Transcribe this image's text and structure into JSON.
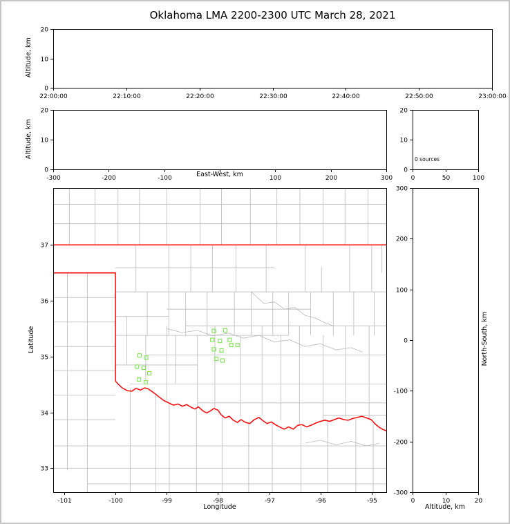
{
  "title": "Oklahoma LMA 2200-2300 UTC March 28, 2021",
  "labels": {
    "altitude": "Altitude, km",
    "east_west": "East-West, km",
    "latitude": "Latitude",
    "longitude": "Longitude",
    "north_south": "North-South, km"
  },
  "colors": {
    "background": "#ffffff",
    "figure_border": "#c4c4c4",
    "frame": "#000000",
    "text": "#000000",
    "county": "#b8b8b8",
    "state_border": "#ff0000",
    "station": "#78e64c"
  },
  "chart_data": [
    {
      "id": "time_height_panel",
      "type": "line",
      "ylabel": "Altitude, km",
      "xlim": [
        0,
        6
      ],
      "x_ticks": [
        0,
        1,
        2,
        3,
        4,
        5,
        6
      ],
      "x_tick_labels": [
        "22:00:00",
        "22:10:00",
        "22:20:00",
        "22:30:00",
        "22:40:00",
        "22:50:00",
        "23:00:00"
      ],
      "ylim": [
        0,
        20
      ],
      "y_ticks": [
        0,
        10,
        20
      ],
      "series": []
    },
    {
      "id": "ew_height_panel",
      "type": "line",
      "xlabel": "East-West, km",
      "ylabel": "Altitude, km",
      "xlim": [
        -300,
        300
      ],
      "x_ticks": [
        -300,
        -200,
        -100,
        0,
        100,
        200,
        300
      ],
      "x_tick_labels": [
        "-300",
        "-200",
        "-100",
        "",
        "100",
        "200",
        "300"
      ],
      "ylim": [
        0,
        20
      ],
      "y_ticks": [
        0,
        10,
        20
      ],
      "series": []
    },
    {
      "id": "altitude_histogram_panel",
      "type": "bar",
      "annotation": "0 sources",
      "xlim": [
        0,
        100
      ],
      "x_ticks": [
        0,
        50,
        100
      ],
      "x_tick_labels": [
        "0",
        "50",
        "100"
      ],
      "ylim": [
        0,
        20
      ],
      "y_ticks": [
        0,
        10,
        20
      ],
      "values": []
    },
    {
      "id": "map_panel",
      "type": "scatter",
      "xlabel": "Longitude",
      "ylabel": "Latitude",
      "xlim": [
        -101.215,
        -94.715
      ],
      "ylim": [
        32.57,
        38.02
      ],
      "x_ticks": [
        -101,
        -100,
        -99,
        -98,
        -97,
        -96,
        -95
      ],
      "y_ticks": [
        33,
        34,
        35,
        36,
        37
      ],
      "stations": [
        [
          -98.08,
          35.46
        ],
        [
          -97.86,
          35.47
        ],
        [
          -98.11,
          35.3
        ],
        [
          -97.96,
          35.28
        ],
        [
          -97.77,
          35.3
        ],
        [
          -97.62,
          35.21
        ],
        [
          -98.08,
          35.13
        ],
        [
          -97.93,
          35.11
        ],
        [
          -97.74,
          35.21
        ],
        [
          -98.03,
          34.96
        ],
        [
          -97.91,
          34.93
        ],
        [
          -99.53,
          35.02
        ],
        [
          -99.4,
          34.98
        ],
        [
          -99.58,
          34.82
        ],
        [
          -99.45,
          34.8
        ],
        [
          -99.34,
          34.7
        ],
        [
          -99.54,
          34.59
        ],
        [
          -99.41,
          34.54
        ]
      ],
      "state_boundary": [
        [
          [
            -101.215,
            37.0
          ],
          [
            -94.715,
            37.0
          ]
        ],
        [
          [
            -94.715,
            36.69
          ],
          [
            -94.63,
            36.69
          ],
          [
            -94.63,
            37.0
          ]
        ],
        [
          [
            -101.215,
            36.5
          ],
          [
            -100.0,
            36.5
          ],
          [
            -100.0,
            34.56
          ],
          [
            -99.95,
            34.51
          ],
          [
            -99.87,
            34.44
          ],
          [
            -99.77,
            34.39
          ],
          [
            -99.68,
            34.38
          ],
          [
            -99.6,
            34.43
          ],
          [
            -99.51,
            34.4
          ],
          [
            -99.43,
            34.44
          ],
          [
            -99.36,
            34.42
          ],
          [
            -99.28,
            34.37
          ],
          [
            -99.22,
            34.33
          ],
          [
            -99.14,
            34.27
          ],
          [
            -99.05,
            34.21
          ],
          [
            -98.96,
            34.17
          ],
          [
            -98.87,
            34.13
          ],
          [
            -98.78,
            34.15
          ],
          [
            -98.69,
            34.11
          ],
          [
            -98.61,
            34.14
          ],
          [
            -98.52,
            34.09
          ],
          [
            -98.45,
            34.06
          ],
          [
            -98.38,
            34.1
          ],
          [
            -98.3,
            34.03
          ],
          [
            -98.22,
            33.99
          ],
          [
            -98.14,
            34.03
          ],
          [
            -98.08,
            34.07
          ],
          [
            -98.0,
            34.04
          ],
          [
            -97.94,
            33.96
          ],
          [
            -97.86,
            33.9
          ],
          [
            -97.78,
            33.93
          ],
          [
            -97.7,
            33.86
          ],
          [
            -97.62,
            33.82
          ],
          [
            -97.55,
            33.87
          ],
          [
            -97.46,
            33.82
          ],
          [
            -97.38,
            33.8
          ],
          [
            -97.29,
            33.87
          ],
          [
            -97.2,
            33.91
          ],
          [
            -97.12,
            33.85
          ],
          [
            -97.04,
            33.8
          ],
          [
            -96.96,
            33.83
          ],
          [
            -96.88,
            33.78
          ],
          [
            -96.8,
            33.74
          ],
          [
            -96.71,
            33.7
          ],
          [
            -96.62,
            33.74
          ],
          [
            -96.53,
            33.7
          ],
          [
            -96.44,
            33.77
          ],
          [
            -96.36,
            33.78
          ],
          [
            -96.27,
            33.74
          ],
          [
            -96.18,
            33.77
          ],
          [
            -96.09,
            33.81
          ],
          [
            -96.0,
            33.84
          ],
          [
            -95.91,
            33.86
          ],
          [
            -95.82,
            33.84
          ],
          [
            -95.73,
            33.87
          ],
          [
            -95.64,
            33.9
          ],
          [
            -95.55,
            33.87
          ],
          [
            -95.46,
            33.86
          ],
          [
            -95.37,
            33.89
          ],
          [
            -95.28,
            33.91
          ],
          [
            -95.19,
            33.93
          ],
          [
            -95.1,
            33.9
          ],
          [
            -95.01,
            33.87
          ],
          [
            -94.93,
            33.79
          ],
          [
            -94.85,
            33.73
          ],
          [
            -94.77,
            33.69
          ],
          [
            -94.715,
            33.67
          ]
        ]
      ],
      "county_vlines": [
        [
          -100.9,
          37.0,
          38.02
        ],
        [
          -100.4,
          37.0,
          38.02
        ],
        [
          -99.95,
          37.0,
          38.02
        ],
        [
          -99.53,
          37.0,
          38.02
        ],
        [
          -99.0,
          37.0,
          38.02
        ],
        [
          -98.35,
          37.0,
          38.02
        ],
        [
          -97.93,
          37.0,
          38.02
        ],
        [
          -97.37,
          37.0,
          38.02
        ],
        [
          -96.85,
          37.0,
          38.02
        ],
        [
          -96.4,
          37.0,
          38.02
        ],
        [
          -95.95,
          37.0,
          38.02
        ],
        [
          -95.52,
          37.0,
          38.02
        ],
        [
          -95.07,
          37.0,
          38.02
        ],
        [
          -100.94,
          32.96,
          36.5
        ],
        [
          -100.55,
          32.57,
          36.5
        ],
        [
          -99.71,
          32.57,
          34.42
        ],
        [
          -99.21,
          32.57,
          34.33
        ],
        [
          -98.95,
          32.57,
          34.16
        ],
        [
          -98.42,
          32.57,
          34.07
        ],
        [
          -97.92,
          32.57,
          33.96
        ],
        [
          -97.4,
          32.57,
          33.82
        ],
        [
          -96.94,
          32.57,
          33.8
        ],
        [
          -96.38,
          32.57,
          33.76
        ],
        [
          -95.86,
          32.57,
          33.85
        ],
        [
          -95.31,
          32.57,
          33.89
        ],
        [
          -94.97,
          32.57,
          33.81
        ],
        [
          -99.6,
          36.16,
          37.0
        ],
        [
          -98.96,
          36.16,
          37.0
        ],
        [
          -98.53,
          36.16,
          37.0
        ],
        [
          -98.11,
          36.16,
          37.0
        ],
        [
          -97.65,
          36.16,
          37.0
        ],
        [
          -97.06,
          36.16,
          37.0
        ],
        [
          -96.3,
          36.16,
          37.0
        ],
        [
          -95.98,
          36.16,
          36.6
        ],
        [
          -95.43,
          36.16,
          37.0
        ],
        [
          -95.0,
          36.16,
          37.0
        ],
        [
          -94.8,
          36.5,
          37.0
        ],
        [
          -99.38,
          35.38,
          36.16
        ],
        [
          -98.96,
          35.38,
          36.16
        ],
        [
          -98.63,
          35.38,
          36.16
        ],
        [
          -98.21,
          35.38,
          36.16
        ],
        [
          -97.68,
          35.38,
          36.16
        ],
        [
          -97.35,
          35.38,
          36.16
        ],
        [
          -96.93,
          35.38,
          36.16
        ],
        [
          -96.62,
          35.38,
          36.16
        ],
        [
          -96.19,
          35.38,
          36.16
        ],
        [
          -95.75,
          35.38,
          36.16
        ],
        [
          -95.35,
          35.38,
          36.16
        ],
        [
          -94.95,
          35.38,
          36.16
        ],
        [
          -99.78,
          34.85,
          35.72
        ],
        [
          -99.41,
          34.56,
          35.38
        ],
        [
          -99.0,
          34.21,
          35.55
        ],
        [
          -98.83,
          34.51,
          35.38
        ],
        [
          -98.4,
          34.07,
          35.38
        ],
        [
          -98.06,
          34.06,
          35.55
        ],
        [
          -97.56,
          33.92,
          35.38
        ],
        [
          -97.14,
          33.95,
          35.55
        ],
        [
          -96.77,
          33.86,
          35.38
        ],
        [
          -96.41,
          33.78,
          35.55
        ],
        [
          -95.95,
          33.86,
          35.38
        ],
        [
          -95.51,
          33.9,
          35.55
        ],
        [
          -95.05,
          33.88,
          35.55
        ]
      ],
      "county_hlines": [
        [
          37.38,
          -101.215,
          -94.715
        ],
        [
          37.73,
          -101.215,
          -94.715
        ],
        [
          36.06,
          -101.215,
          -100.0
        ],
        [
          35.62,
          -101.215,
          -100.0
        ],
        [
          35.18,
          -101.215,
          -100.0
        ],
        [
          34.75,
          -101.215,
          -100.0
        ],
        [
          34.31,
          -101.215,
          -100.0
        ],
        [
          33.87,
          -101.215,
          -100.0
        ],
        [
          33.4,
          -101.215,
          -94.715
        ],
        [
          33.0,
          -101.215,
          -94.715
        ],
        [
          32.72,
          -100.55,
          -94.715
        ],
        [
          36.59,
          -100.0,
          -96.9
        ],
        [
          36.16,
          -100.0,
          -94.715
        ],
        [
          35.85,
          -99.0,
          -96.19
        ],
        [
          35.72,
          -100.0,
          -98.96
        ],
        [
          35.55,
          -98.63,
          -94.715
        ],
        [
          35.38,
          -100.0,
          -96.62
        ],
        [
          35.03,
          -99.41,
          -94.715
        ],
        [
          34.85,
          -100.0,
          -98.4
        ],
        [
          34.51,
          -99.72,
          -94.715
        ],
        [
          34.17,
          -98.4,
          -94.715
        ],
        [
          33.95,
          -95.95,
          -94.715
        ]
      ],
      "county_polylines": [
        [
          [
            -97.35,
            36.16
          ],
          [
            -97.1,
            35.95
          ],
          [
            -96.9,
            35.98
          ],
          [
            -96.7,
            35.85
          ],
          [
            -96.5,
            35.88
          ],
          [
            -96.3,
            35.74
          ],
          [
            -96.1,
            35.69
          ],
          [
            -95.9,
            35.6
          ],
          [
            -95.75,
            35.55
          ]
        ],
        [
          [
            -99.0,
            35.5
          ],
          [
            -98.7,
            35.43
          ],
          [
            -98.4,
            35.47
          ],
          [
            -98.1,
            35.37
          ],
          [
            -97.8,
            35.42
          ],
          [
            -97.5,
            35.33
          ],
          [
            -97.2,
            35.38
          ],
          [
            -96.9,
            35.26
          ],
          [
            -96.6,
            35.3
          ],
          [
            -96.3,
            35.18
          ],
          [
            -96.0,
            35.23
          ],
          [
            -95.7,
            35.12
          ],
          [
            -95.4,
            35.16
          ],
          [
            -95.18,
            35.08
          ]
        ],
        [
          [
            -96.3,
            33.45
          ],
          [
            -96.0,
            33.5
          ],
          [
            -95.7,
            33.42
          ],
          [
            -95.4,
            33.48
          ],
          [
            -95.1,
            33.4
          ],
          [
            -94.85,
            33.45
          ]
        ]
      ]
    },
    {
      "id": "ns_height_panel",
      "type": "line",
      "xlabel": "Altitude, km",
      "ylabel_right": "North-South, km",
      "xlim": [
        0,
        20
      ],
      "x_ticks": [
        0,
        10,
        20
      ],
      "x_tick_labels": [
        "0",
        "10",
        "20"
      ],
      "ylim": [
        -300,
        300
      ],
      "y_ticks": [
        -300,
        -200,
        -100,
        0,
        100,
        200,
        300
      ],
      "series": []
    }
  ]
}
